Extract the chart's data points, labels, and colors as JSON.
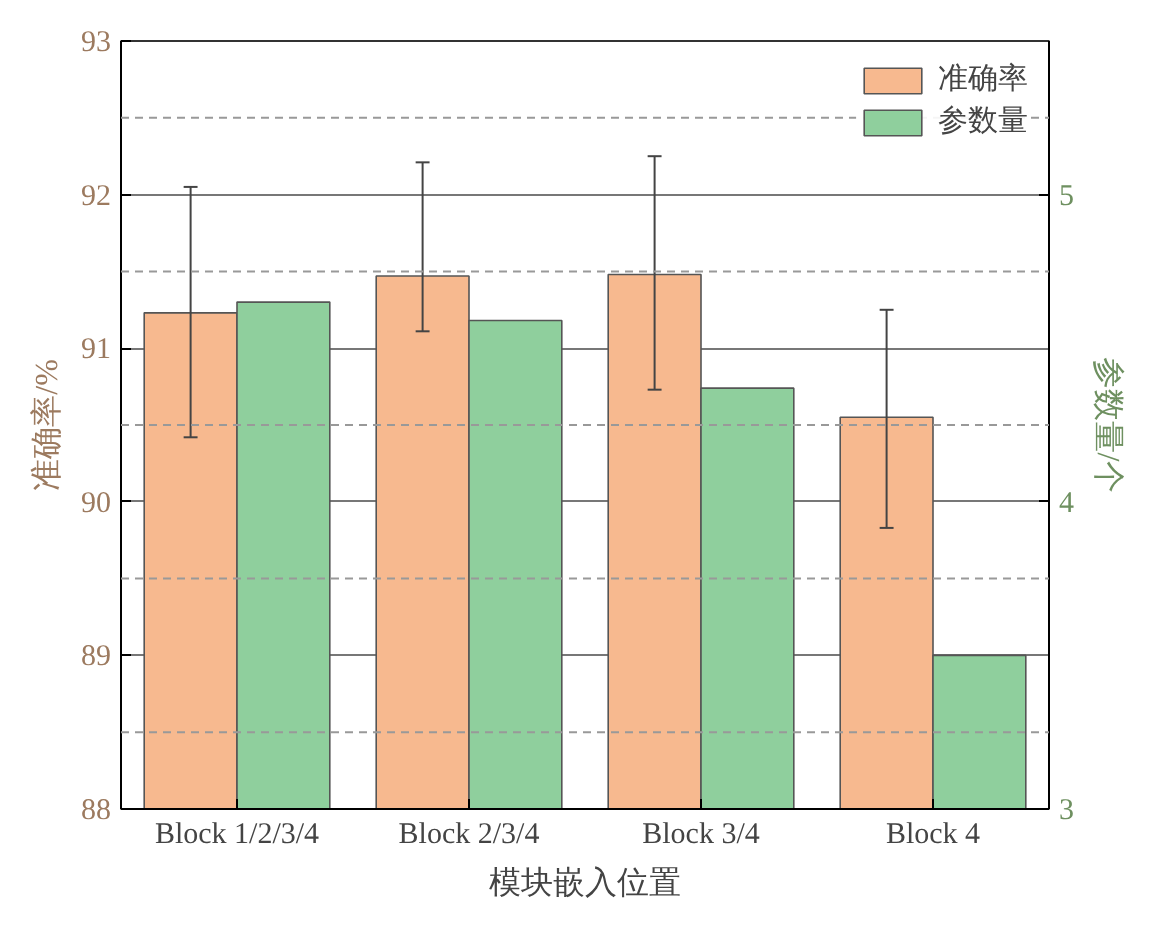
{
  "chart_data": {
    "type": "bar",
    "xlabel": "模块嵌入位置",
    "ylabel": "准确率/%",
    "y2label": "参数量/个",
    "categories": [
      "Block 1/2/3/4",
      "Block 2/3/4",
      "Block 3/4",
      "Block 4"
    ],
    "series": [
      {
        "name": "准确率",
        "color": "#f7b98f",
        "values": [
          91.23,
          91.47,
          91.48,
          90.55
        ],
        "errors": [
          [
            90.42,
            92.05
          ],
          [
            91.11,
            92.21
          ],
          [
            90.73,
            92.25
          ],
          [
            89.83,
            91.25
          ]
        ]
      },
      {
        "name": "参数量",
        "color": "#8fcf9d",
        "axis": "y2",
        "values": [
          4.65,
          4.59,
          4.37,
          3.5
        ]
      }
    ],
    "ylim": [
      88,
      93
    ],
    "yticks": [
      88,
      89,
      90,
      91,
      92,
      93
    ],
    "y2lim": [
      3,
      5.5
    ],
    "y2ticks": [
      3,
      4,
      5
    ],
    "grid": "y",
    "legend": "top right"
  }
}
